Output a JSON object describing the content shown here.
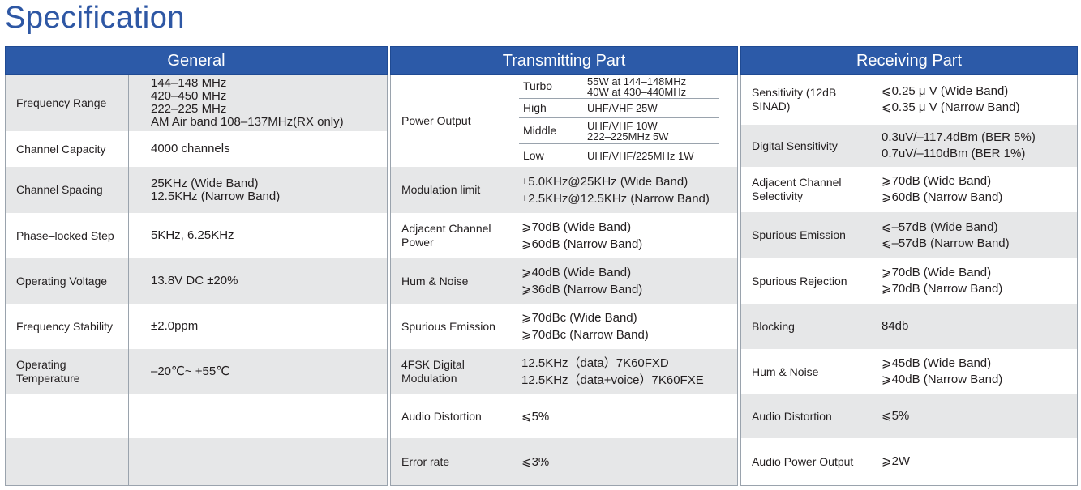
{
  "title": "Specification",
  "general": {
    "header": "General",
    "rows": [
      {
        "label": "Frequency Range",
        "values": [
          "144–148 MHz",
          "420–450 MHz",
          "222–225 MHz",
          "AM Air band 108–137MHz(RX only)"
        ]
      },
      {
        "label": "Channel Capacity",
        "values": [
          "4000 channels"
        ]
      },
      {
        "label": "Channel Spacing",
        "values": [
          "25KHz (Wide Band)",
          "12.5KHz (Narrow Band)"
        ]
      },
      {
        "label": "Phase–locked Step",
        "values": [
          "5KHz, 6.25KHz"
        ]
      },
      {
        "label": "Operating Voltage",
        "values": [
          "13.8V DC  ±20%"
        ]
      },
      {
        "label": "Frequency Stability",
        "values": [
          "±2.0ppm"
        ]
      },
      {
        "label": "Operating Temperature",
        "values": [
          "–20℃~ +55℃"
        ]
      },
      {
        "label": "",
        "values": []
      },
      {
        "label": "",
        "values": []
      }
    ]
  },
  "transmitting": {
    "header": "Transmitting Part",
    "power_output": {
      "label": "Power Output",
      "levels": [
        {
          "level": "Turbo",
          "value": [
            "55W at 144–148MHz",
            "40W at 430–440MHz"
          ]
        },
        {
          "level": "High",
          "value": [
            "UHF/VHF  25W"
          ]
        },
        {
          "level": "Middle",
          "value": [
            "UHF/VHF  10W",
            "222–225MHz 5W"
          ]
        },
        {
          "level": "Low",
          "value": [
            "UHF/VHF/225MHz  1W"
          ]
        }
      ]
    },
    "rows": [
      {
        "label": "Modulation limit",
        "values": [
          "±5.0KHz@25KHz (Wide Band)",
          "±2.5KHz@12.5KHz (Narrow Band)"
        ]
      },
      {
        "label": "Adjacent Channel Power",
        "values": [
          "⩾70dB (Wide Band)",
          "⩾60dB (Narrow Band)"
        ]
      },
      {
        "label": "Hum & Noise",
        "values": [
          "⩾40dB (Wide Band)",
          "⩾36dB (Narrow Band)"
        ]
      },
      {
        "label": "Spurious Emission",
        "values": [
          "⩾70dBc (Wide Band)",
          "⩾70dBc (Narrow Band)"
        ]
      },
      {
        "label": "4FSK Digital Modulation",
        "values": [
          "12.5KHz（data）7K60FXD",
          "12.5KHz（data+voice）7K60FXE"
        ]
      },
      {
        "label": "Audio Distortion",
        "values": [
          "⩽5%"
        ]
      },
      {
        "label": "Error rate",
        "values": [
          "⩽3%"
        ]
      }
    ]
  },
  "receiving": {
    "header": "Receiving Part",
    "rows": [
      {
        "label": "Sensitivity (12dB SINAD)",
        "values": [
          "⩽0.25 μ V (Wide Band)",
          "⩽0.35 μ V (Narrow Band)"
        ]
      },
      {
        "label": "Digital Sensitivity",
        "values": [
          "0.3uV/–117.4dBm (BER 5%)",
          "0.7uV/–110dBm (BER 1%)"
        ]
      },
      {
        "label": "Adjacent Channel Selectivity",
        "values": [
          "⩾70dB (Wide Band)",
          "⩾60dB (Narrow Band)"
        ]
      },
      {
        "label": "Spurious Emission",
        "values": [
          "⩽–57dB (Wide Band)",
          "⩽–57dB (Narrow Band)"
        ]
      },
      {
        "label": "Spurious Rejection",
        "values": [
          "⩾70dB (Wide Band)",
          "⩾70dB (Narrow Band)"
        ]
      },
      {
        "label": "Blocking",
        "values": [
          "84db"
        ]
      },
      {
        "label": "Hum & Noise",
        "values": [
          "⩾45dB (Wide Band)",
          "⩾40dB (Narrow Band)"
        ]
      },
      {
        "label": "Audio Distortion",
        "values": [
          "⩽5%"
        ]
      },
      {
        "label": "Audio Power Output",
        "values": [
          "⩾2W"
        ]
      }
    ]
  }
}
